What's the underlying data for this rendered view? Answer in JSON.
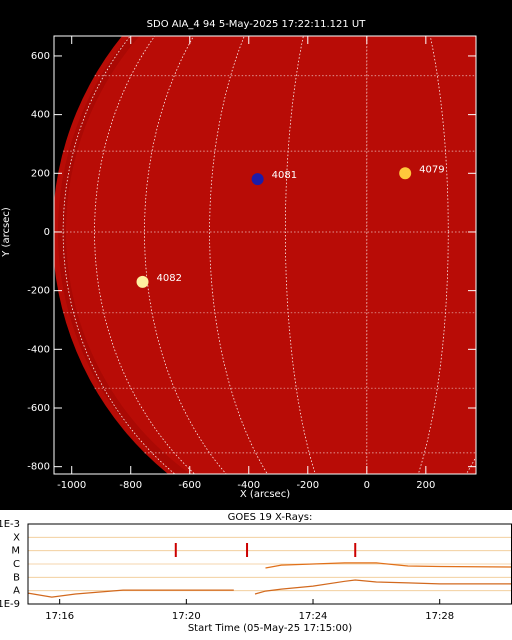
{
  "chart_data": [
    {
      "type": "image",
      "title": "SDO AIA_4 94  5-May-2025 17:22:11.121 UT",
      "x_label": "X (arcsec)",
      "y_label": "Y (arcsec)",
      "xlim": [
        -1060,
        370
      ],
      "ylim": [
        -825,
        668
      ],
      "xticks": [
        -1000,
        -800,
        -600,
        -400,
        -200,
        0,
        200
      ],
      "yticks": [
        -800,
        -600,
        -400,
        -200,
        0,
        200,
        400,
        600
      ],
      "grid": true,
      "regions": [
        {
          "label": "4081",
          "x": -370,
          "y": 180,
          "color": "#1c1ca8"
        },
        {
          "label": "4079",
          "x": 130,
          "y": 200,
          "color": "#ffc83c"
        },
        {
          "label": "4082",
          "x": -760,
          "y": -170,
          "color": "#fff0a0"
        }
      ]
    },
    {
      "type": "line",
      "title": "GOES 19 X-Rays:",
      "x_label": "Start Time (05-May-25 17:15:00)",
      "log_y": true,
      "xlim": [
        "17:15:00",
        "17:30:17"
      ],
      "ylim": [
        1e-09,
        0.001
      ],
      "xticks": [
        "17:16",
        "17:20",
        "17:24",
        "17:28"
      ],
      "yticks": [
        {
          "value": 0.001,
          "label": "1E-3"
        },
        {
          "value": 0.0001,
          "label": "X"
        },
        {
          "value": 1e-05,
          "label": "M"
        },
        {
          "value": 1e-06,
          "label": "C"
        },
        {
          "value": 1e-07,
          "label": "B"
        },
        {
          "value": 1e-08,
          "label": "A"
        },
        {
          "value": 1e-09,
          "label": "1E-9"
        }
      ],
      "grid": true,
      "x": [
        "17:15:00",
        "17:15:45",
        "17:16:30",
        "17:18:00",
        "17:21:30",
        "17:22:00",
        "17:22:10",
        "17:22:30",
        "17:23:00",
        "17:24:00",
        "17:25:00",
        "17:25:20",
        "17:26:00",
        "17:27:00",
        "17:28:00",
        "17:30:17"
      ],
      "series": [
        {
          "color": "#d2691e",
          "values": [
            6.6e-09,
            3.3e-09,
            5.6e-09,
            1.1e-08,
            1.1e-08,
            null,
            5.6e-09,
            9.3e-09,
            1.3e-08,
            2.2e-08,
            5e-08,
            6.3e-08,
            4.5e-08,
            3.8e-08,
            3.2e-08,
            3.2e-08
          ]
        },
        {
          "color": "#e0701a",
          "values": [
            null,
            null,
            null,
            null,
            null,
            null,
            null,
            5e-07,
            8.3e-07,
            1e-06,
            1.2e-06,
            1.2e-06,
            1.2e-06,
            7.1e-07,
            6.5e-07,
            6e-07
          ]
        }
      ],
      "markers": {
        "color": "#cc0000",
        "x": [
          "17:19:40",
          "17:21:55",
          "17:25:20"
        ]
      }
    }
  ]
}
